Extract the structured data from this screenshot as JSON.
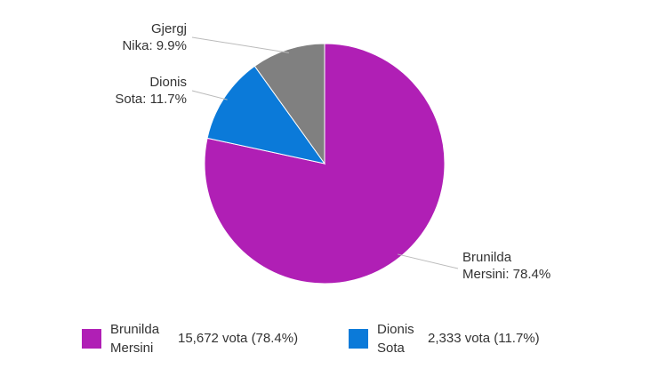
{
  "chart_data": {
    "type": "pie",
    "categories": [
      "Brunilda Mersini",
      "Dionis Sota",
      "Gjergj Nika"
    ],
    "values": [
      78.4,
      11.7,
      9.9
    ],
    "colors": [
      "#b01fb5",
      "#0b7ad9",
      "#808080"
    ],
    "slice_labels": [
      [
        "Brunilda",
        "Mersini: 78.4%"
      ],
      [
        "Dionis",
        "Sota: 11.7%"
      ],
      [
        "Gjergj",
        "Nika: 9.9%"
      ]
    ],
    "legend": [
      {
        "name": [
          "Brunilda",
          "Mersini"
        ],
        "votes": 15672,
        "label": "15,672 vota (78.4%)"
      },
      {
        "name": [
          "Dionis",
          "Sota"
        ],
        "votes": 2333,
        "label": "2,333 vota (11.7%)"
      }
    ]
  }
}
